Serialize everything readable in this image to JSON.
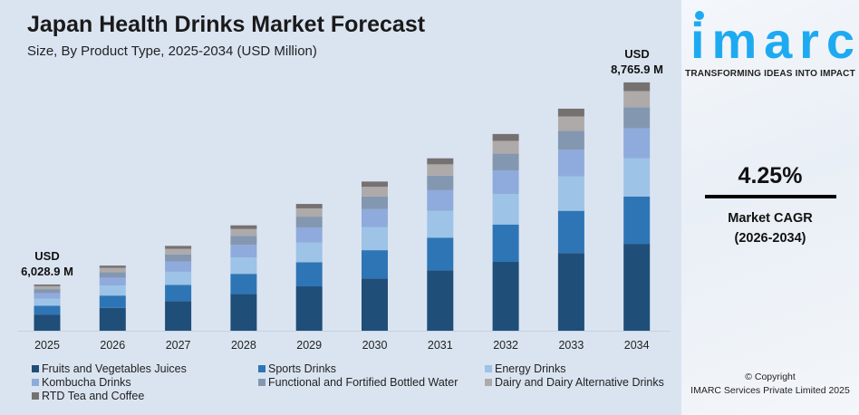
{
  "header": {
    "title": "Japan Health Drinks Market Forecast",
    "subtitle": "Size, By Product Type, 2025-2034 (USD Million)"
  },
  "annotations": {
    "first_currency": "USD",
    "first_value": "6,028.9 M",
    "last_currency": "USD",
    "last_value": "8,765.9 M"
  },
  "sidebar": {
    "logo_text": "imarc",
    "tagline": "TRANSFORMING IDEAS INTO IMPACT",
    "cagr_value": "4.25%",
    "cagr_label": "Market CAGR",
    "cagr_period": "(2026-2034)",
    "copyright_line1": "© Copyright",
    "copyright_line2": "IMARC Services Private Limited 2025",
    "brand_color": "#1eaaf1"
  },
  "chart_data": {
    "type": "bar",
    "stacked": true,
    "title": "Japan Health Drinks Market Forecast",
    "subtitle": "Size, By Product Type, 2025-2034 (USD Million)",
    "xlabel": "",
    "ylabel": "",
    "grid": false,
    "legend_position": "bottom",
    "categories": [
      "2025",
      "2026",
      "2027",
      "2028",
      "2029",
      "2030",
      "2031",
      "2032",
      "2033",
      "2034"
    ],
    "totals": [
      6028.9,
      6285,
      6552,
      6830,
      7120,
      7423,
      7738,
      8067,
      8410,
      8765.9
    ],
    "series": [
      {
        "name": "Fruits and Vegetables Juices",
        "color": "#1f4e79",
        "values": [
          2110,
          2200,
          2293,
          2391,
          2492,
          2598,
          2708,
          2823,
          2944,
          3068
        ]
      },
      {
        "name": "Sports Drinks",
        "color": "#2e75b6",
        "values": [
          1146,
          1194,
          1245,
          1298,
          1353,
          1410,
          1470,
          1533,
          1598,
          1666
        ]
      },
      {
        "name": "Energy Drinks",
        "color": "#9dc3e6",
        "values": [
          934,
          974,
          1016,
          1059,
          1104,
          1151,
          1199,
          1250,
          1304,
          1359
        ]
      },
      {
        "name": "Kombucha Drinks",
        "color": "#8faadc",
        "values": [
          723,
          754,
          786,
          820,
          854,
          891,
          929,
          968,
          1009,
          1052
        ]
      },
      {
        "name": "Functional and Fortified Bottled Water",
        "color": "#8497b0",
        "values": [
          512,
          534,
          557,
          581,
          605,
          631,
          658,
          686,
          715,
          745
        ]
      },
      {
        "name": "Dairy and Dairy Alternative Drinks",
        "color": "#aeaaaa",
        "values": [
          392,
          409,
          426,
          444,
          463,
          482,
          503,
          524,
          547,
          570
        ]
      },
      {
        "name": "RTD Tea and Coffee",
        "color": "#767171",
        "values": [
          211,
          220,
          229,
          239,
          249,
          260,
          271,
          282,
          294,
          307
        ]
      }
    ]
  }
}
